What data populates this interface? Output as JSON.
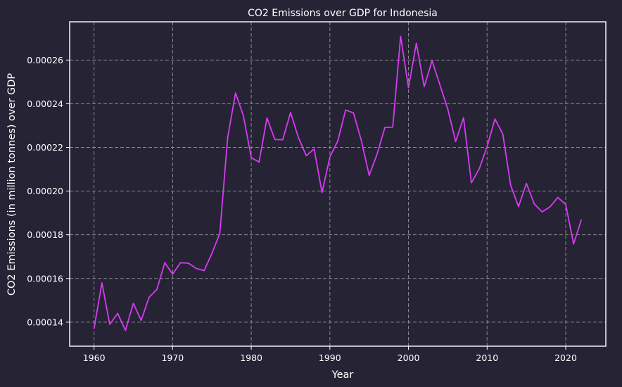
{
  "colors": {
    "background": "#262335",
    "line": "#d63bf2",
    "grid": "#8a8a8a",
    "axis": "#ffffff",
    "text": "#ffffff"
  },
  "chart_data": {
    "type": "line",
    "title": "CO2 Emissions over GDP for Indonesia",
    "xlabel": "Year",
    "ylabel": "CO2 Emissions (in million tonnes) over GDP",
    "xlim": [
      1956.9,
      1965.1
    ],
    "ylim": [
      0.000129,
      0.0002775
    ],
    "grid": true,
    "grid_style": "dashed",
    "x_ticks": [
      1960,
      1970,
      1980,
      1990,
      2000,
      2010,
      2020
    ],
    "y_ticks": [
      0.00014,
      0.00016,
      0.00018,
      0.0002,
      0.00022,
      0.00024,
      0.00026
    ],
    "y_tick_labels": [
      "0.00014",
      "0.00016",
      "0.00018",
      "0.00020",
      "0.00022",
      "0.00024",
      "0.00026"
    ],
    "series": [
      {
        "x": [
          1960,
          1961,
          1962,
          1963,
          1964,
          1965,
          1966,
          1967,
          1968,
          1969,
          1970,
          1971,
          1972,
          1973,
          1974,
          1975,
          1976,
          1977,
          1978,
          1979,
          1980,
          1981,
          1982,
          1983,
          1984,
          1985,
          1986,
          1987,
          1988,
          1989,
          1990,
          1991,
          1992,
          1993,
          1994,
          1995,
          1996,
          1997,
          1998,
          1999,
          2000,
          2001,
          2002,
          2003,
          2004,
          2005,
          2006,
          2007,
          2008,
          2009,
          2010,
          2011,
          2012,
          2013,
          2014,
          2015,
          2016,
          2017,
          2018,
          2019,
          2020,
          2021,
          2022
        ],
        "values": [
          0.000137,
          0.000158,
          0.000139,
          0.000144,
          0.0001362,
          0.0001486,
          0.0001408,
          0.0001514,
          0.000155,
          0.0001672,
          0.000162,
          0.0001672,
          0.000167,
          0.0001646,
          0.0001636,
          0.0001715,
          0.0001806,
          0.0002246,
          0.0002449,
          0.0002345,
          0.0002153,
          0.0002133,
          0.0002335,
          0.0002236,
          0.0002235,
          0.000236,
          0.0002245,
          0.0002162,
          0.0002193,
          0.0001993,
          0.0002156,
          0.0002229,
          0.0002371,
          0.0002358,
          0.0002232,
          0.0002072,
          0.0002169,
          0.0002291,
          0.0002293,
          0.0002709,
          0.0002474,
          0.0002677,
          0.0002478,
          0.0002597,
          0.0002486,
          0.0002375,
          0.0002227,
          0.0002336,
          0.0002038,
          0.0002102,
          0.0002204,
          0.000233,
          0.0002261,
          0.0002026,
          0.0001929,
          0.0002035,
          0.0001941,
          0.0001905,
          0.0001928,
          0.0001971,
          0.0001939,
          0.0001758,
          0.000187
        ]
      }
    ]
  }
}
